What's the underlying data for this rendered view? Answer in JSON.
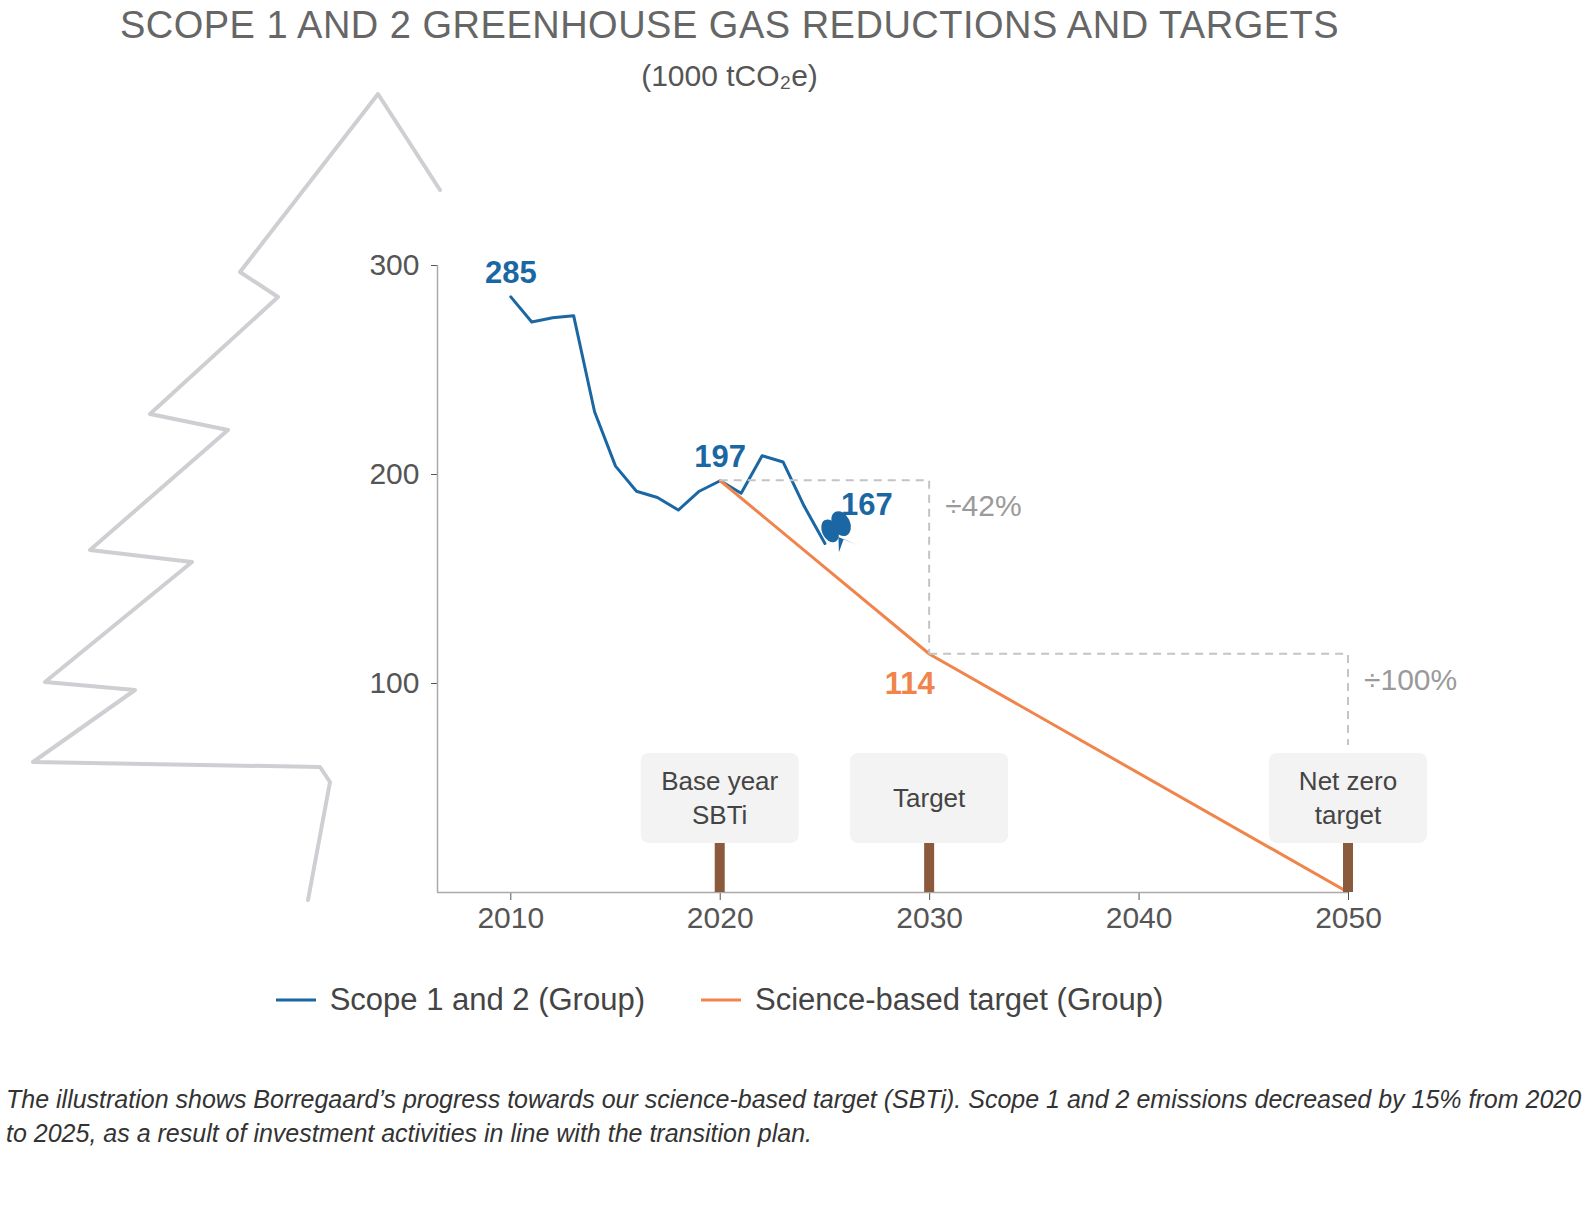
{
  "chart_data": {
    "type": "line",
    "title": "SCOPE 1 AND 2 GREENHOUSE GAS REDUCTIONS AND TARGETS",
    "subtitle": "(1000 tCO₂e)",
    "caption": "The illustration shows Borregaard’s progress towards our science-based target (SBTi). Scope 1 and 2 emissions decreased by 15% from 2020 to 2025, as a result of investment activities in line with the transition plan.",
    "x": [
      2010,
      2011,
      2012,
      2013,
      2014,
      2015,
      2016,
      2017,
      2018,
      2019,
      2020,
      2021,
      2022,
      2023,
      2024,
      2025,
      2030,
      2050
    ],
    "series": [
      {
        "name": "Scope 1 and 2 (Group)",
        "color": "#1b67a3",
        "values": [
          285,
          273,
          275,
          276,
          230,
          204,
          192,
          189,
          183,
          192,
          197,
          191,
          209,
          206,
          185,
          167,
          null,
          null
        ],
        "value_labels": [
          "285",
          null,
          null,
          null,
          null,
          null,
          null,
          null,
          null,
          null,
          "197",
          null,
          null,
          null,
          null,
          "167",
          null,
          null
        ]
      },
      {
        "name": "Science-based target (Group)",
        "color": "#f0844a",
        "values": [
          null,
          null,
          null,
          null,
          null,
          null,
          null,
          null,
          null,
          null,
          197,
          null,
          null,
          null,
          null,
          null,
          114,
          0
        ],
        "value_labels": [
          null,
          null,
          null,
          null,
          null,
          null,
          null,
          null,
          null,
          null,
          null,
          null,
          null,
          null,
          null,
          null,
          "114",
          null
        ]
      }
    ],
    "xlim": [
      2006.5,
      2050
    ],
    "xticks": [
      2010,
      2020,
      2030,
      2040,
      2050
    ],
    "ylim": [
      0,
      300
    ],
    "yticks": [
      100,
      200,
      300
    ],
    "grid": false,
    "legend": "bottom",
    "annotations": [
      {
        "text": "÷42%",
        "from": 2020,
        "to": 2030
      },
      {
        "text": "÷100%",
        "from": 2030,
        "to": 2050
      }
    ],
    "signposts": [
      {
        "text": "Base year SBTi",
        "x": 2020
      },
      {
        "text": "Target",
        "x": 2030
      },
      {
        "text": "Net zero target",
        "x": 2050
      }
    ]
  }
}
